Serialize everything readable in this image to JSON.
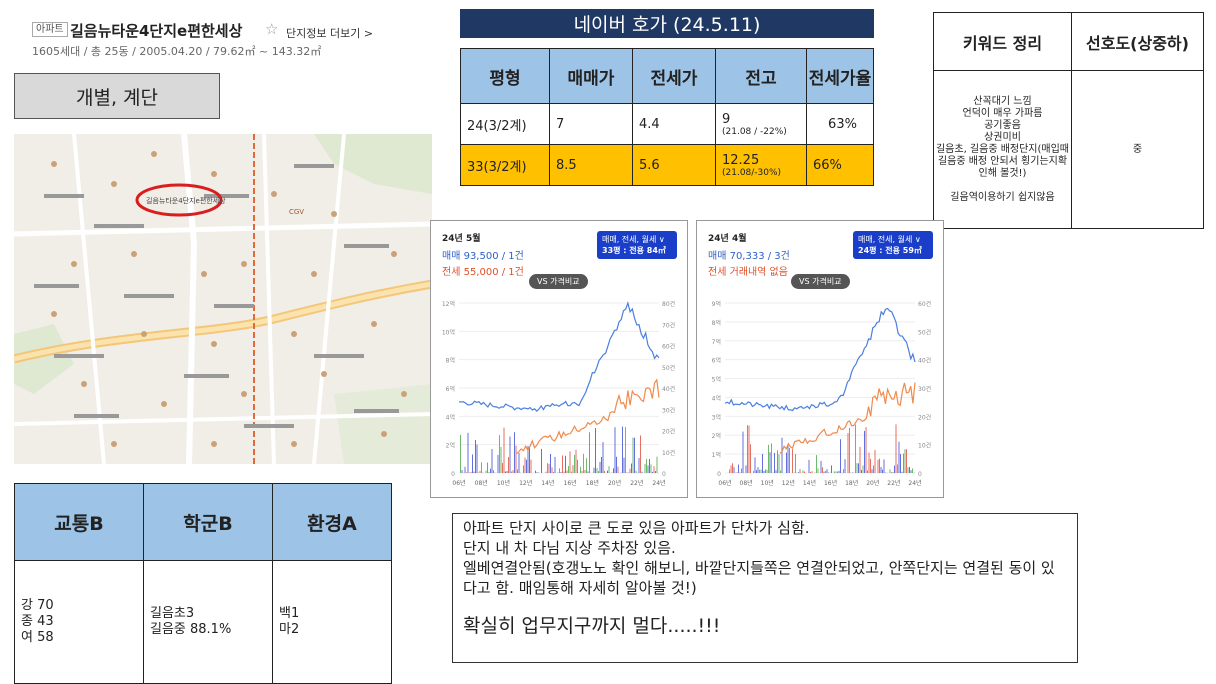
{
  "apartment": {
    "badge": "아파트",
    "name": "길음뉴타운4단지e편한세상",
    "star": "☆",
    "more_link": "단지정보 더보기 >",
    "meta": "1605세대 / 총 25동 / 2005.04.20 / 79.62㎡ ~ 143.32㎡"
  },
  "indiv_button": "개별, 계단",
  "price_section": {
    "title": "네이버 호가 (24.5.11)",
    "headers": [
      "평형",
      "매매가",
      "전세가",
      "전고",
      "전세가율"
    ],
    "rows": [
      {
        "size": "24(3/2계)",
        "sale": "7",
        "jeonse": "4.4",
        "peak": "9",
        "peak_sub": "(21.08 / -22%)",
        "rate": "63%"
      },
      {
        "size": "33(3/2계)",
        "sale": "8.5",
        "jeonse": "5.6",
        "peak": "12.25",
        "peak_sub": "(21.08/-30%)",
        "rate": "66%"
      }
    ],
    "highlight_color": "#ffc000"
  },
  "keyword_section": {
    "headers": [
      "키워드 정리",
      "선호도(상중하)"
    ],
    "keywords": [
      "산꼭대기 느낌",
      "언덕이 매우 가파름",
      "공기좋음",
      "상권미비",
      "길음초, 길음중 배정단지(매입때 길음중 배정 안되서 횡기는지확인해 볼것!)",
      "",
      "길음역이용하기 쉽지않음"
    ],
    "preference": "중"
  },
  "charts": [
    {
      "month": "24년 5월",
      "sale": "매매 93,500 / 1건",
      "jeonse": "전세 55,000 / 1건",
      "filter_line1": "매매, 전세, 월세 ∨",
      "filter_line2": "33평 : 전용 84㎡",
      "vs": "VS 가격비교",
      "left_ticks": [
        "0",
        "2억",
        "4억",
        "6억",
        "8억",
        "10억",
        "12억"
      ],
      "right_ticks": [
        "0",
        "10건",
        "20건",
        "30건",
        "40건",
        "50건",
        "60건",
        "70건",
        "80건"
      ],
      "x_ticks": [
        "06년",
        "08년",
        "10년",
        "12년",
        "14년",
        "16년",
        "18년",
        "20년",
        "22년",
        "24년"
      ]
    },
    {
      "month": "24년 4월",
      "sale": "매매 70,333 / 3건",
      "jeonse": "전세 거래내역 없음",
      "filter_line1": "매매, 전세, 월세 ∨",
      "filter_line2": "24평 : 전용 59㎡",
      "vs": "VS 가격비교",
      "left_ticks": [
        "0",
        "1억",
        "2억",
        "3억",
        "4억",
        "5억",
        "6억",
        "7억",
        "8억",
        "9억"
      ],
      "right_ticks": [
        "0",
        "10건",
        "20건",
        "30건",
        "40건",
        "50건",
        "60건"
      ],
      "x_ticks": [
        "06년",
        "08년",
        "10년",
        "12년",
        "14년",
        "16년",
        "18년",
        "20년",
        "22년",
        "24년"
      ]
    }
  ],
  "ratings": {
    "headers": [
      "교통B",
      "학군B",
      "환경A"
    ],
    "traffic": "강 70\n종 43\n여 58",
    "school": "길음초3\n길음중 88.1%",
    "environment": "백1\n마2"
  },
  "note": {
    "lines": [
      "아파트 단지 사이로 큰 도로 있음 아파트가 단차가 심함.",
      "단지 내 차 다님 지상 주차장 있음.",
      "엘베연결안됨(호갱노노 확인 해보니, 바깥단지들쪽은 연결안되었고, 안쪽단지는 연결된 동이 있다고 함. 매임통해 자세히 알아볼 것!)"
    ],
    "emphasis": "확실히 업무지구까지 멀다.....!!!"
  },
  "map_labels": [
    "길음뉴타운4단지e편한세상",
    "CGV"
  ]
}
